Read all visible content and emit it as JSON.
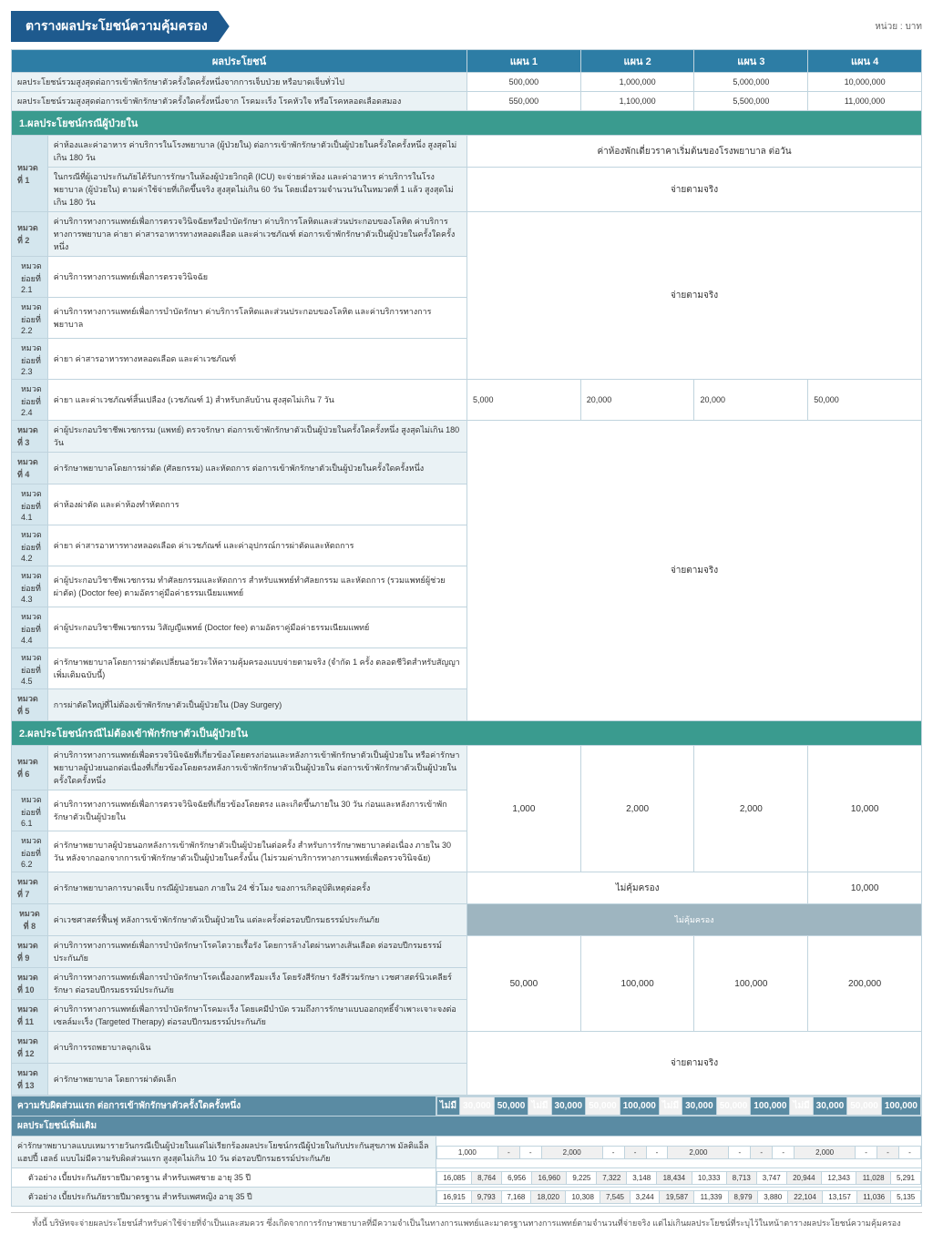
{
  "title": "ตารางผลประโยชน์ความคุ้มครอง",
  "unit": "หน่วย : บาท",
  "headers": {
    "benefit": "ผลประโยชน์",
    "plan1": "แผน 1",
    "plan2": "แผน 2",
    "plan3": "แผน 3",
    "plan4": "แผน 4"
  },
  "topRows": [
    {
      "desc": "ผลประโยชน์รวมสูงสุดต่อการเข้าพักรักษาตัวครั้งใดครั้งหนึ่งจากการเจ็บป่วย หรือบาดเจ็บทั่วไป",
      "v": [
        "500,000",
        "1,000,000",
        "5,000,000",
        "10,000,000"
      ]
    },
    {
      "desc": "ผลประโยชน์รวมสูงสุดต่อการเข้าพักรักษาตัวครั้งใดครั้งหนึ่งจาก โรคมะเร็ง โรคหัวใจ หรือโรคหลอดเลือดสมอง",
      "v": [
        "550,000",
        "1,100,000",
        "5,500,000",
        "11,000,000"
      ]
    }
  ],
  "section1": "1.ผลประโยชน์กรณีผู้ป่วยใน",
  "section2": "2.ผลประโยชน์กรณีไม่ต้องเข้าพักรักษาตัวเป็นผู้ป่วยใน",
  "cat1": {
    "label": "หมวดที่ 1",
    "r1": "ค่าห้องและค่าอาหาร ค่าบริการในโรงพยาบาล (ผู้ป่วยใน) ต่อการเข้าพักรักษาตัวเป็นผู้ป่วยในครั้งใดครั้งหนึ่ง สูงสุดไม่เกิน 180 วัน",
    "r1v": "ค่าห้องพักเดี่ยวราคาเริ่มต้นของโรงพยาบาล ต่อวัน",
    "r2": "ในกรณีที่ผู้เอาประกันภัยได้รับการรักษาในห้องผู้ป่วยวิกฤติ (ICU) จะจ่ายค่าห้อง และค่าอาหาร ค่าบริการในโรงพยาบาล (ผู้ป่วยใน) ตามค่าใช้จ่ายที่เกิดขึ้นจริง สูงสุดไม่เกิน 60 วัน โดยเมื่อรวมจำนวนวันในหมวดที่ 1 แล้ว สูงสุดไม่เกิน 180 วัน",
    "r2v": "จ่ายตามจริง"
  },
  "cat2": {
    "label": "หมวดที่ 2",
    "desc": "ค่าบริการทางการแพทย์เพื่อการตรวจวินิจฉัยหรือบำบัดรักษา ค่าบริการโลหิตและส่วนประกอบของโลหิต ค่าบริการทางการพยาบาล ค่ายา ค่าสารอาหารทางหลอดเลือด และค่าเวชภัณฑ์ ต่อการเข้าพักรักษาตัวเป็นผู้ป่วยในครั้งใดครั้งหนึ่ง"
  },
  "cat2sub": [
    {
      "l": "หมวดย่อยที่ 2.1",
      "d": "ค่าบริการทางการแพทย์เพื่อการตรวจวินิจฉัย"
    },
    {
      "l": "หมวดย่อยที่ 2.2",
      "d": "ค่าบริการทางการแพทย์เพื่อการบำบัดรักษา ค่าบริการโลหิตและส่วนประกอบของโลหิต และค่าบริการทางการพยาบาล"
    },
    {
      "l": "หมวดย่อยที่ 2.3",
      "d": "ค่ายา ค่าสารอาหารทางหลอดเลือด และค่าเวชภัณฑ์"
    },
    {
      "l": "หมวดย่อยที่ 2.4",
      "d": "ค่ายา และค่าเวชภัณฑ์สิ้นเปลือง (เวชภัณฑ์ 1) สำหรับกลับบ้าน สูงสุดไม่เกิน 7 วัน",
      "v": [
        "5,000",
        "20,000",
        "20,000",
        "50,000"
      ]
    }
  ],
  "cat2merged": "จ่ายตามจริง",
  "cat3": {
    "label": "หมวดที่ 3",
    "desc": "ค่าผู้ประกอบวิชาชีพเวชกรรม (แพทย์) ตรวจรักษา ต่อการเข้าพักรักษาตัวเป็นผู้ป่วยในครั้งใดครั้งหนึ่ง สูงสุดไม่เกิน 180 วัน"
  },
  "cat4": {
    "label": "หมวดที่ 4",
    "desc": "ค่ารักษาพยาบาลโดยการผ่าตัด (ศัลยกรรม) และหัตถการ ต่อการเข้าพักรักษาตัวเป็นผู้ป่วยในครั้งใดครั้งหนึ่ง"
  },
  "cat4sub": [
    {
      "l": "หมวดย่อยที่ 4.1",
      "d": "ค่าห้องผ่าตัด และค่าห้องทำหัตถการ"
    },
    {
      "l": "หมวดย่อยที่ 4.2",
      "d": "ค่ายา ค่าสารอาหารทางหลอดเลือด ค่าเวชภัณฑ์ และค่าอุปกรณ์การผ่าตัดและหัตถการ"
    },
    {
      "l": "หมวดย่อยที่ 4.3",
      "d": "ค่าผู้ประกอบวิชาชีพเวชกรรม ทำศัลยกรรมและหัตถการ สำหรับแพทย์ทำศัลยกรรม และหัตถการ (รวมแพทย์ผู้ช่วยผ่าตัด) (Doctor fee) ตามอัตราคู่มือค่าธรรมเนียมแพทย์"
    },
    {
      "l": "หมวดย่อยที่ 4.4",
      "d": "ค่าผู้ประกอบวิชาชีพเวชกรรม วิสัญญีแพทย์ (Doctor fee) ตามอัตราคู่มือค่าธรรมเนียมแพทย์"
    },
    {
      "l": "หมวดย่อยที่ 4.5",
      "d": "ค่ารักษาพยาบาลโดยการผ่าตัดเปลี่ยนอวัยวะให้ความคุ้มครองแบบจ่ายตามจริง (จำกัด 1 ครั้ง ตลอดชีวิตสำหรับสัญญาเพิ่มเติมฉบับนี้)"
    }
  ],
  "cat4merged": "จ่ายตามจริง",
  "cat5": {
    "label": "หมวดที่ 5",
    "desc": "การผ่าตัดใหญ่ที่ไม่ต้องเข้าพักรักษาตัวเป็นผู้ป่วยใน (Day Surgery)"
  },
  "cat6": {
    "label": "หมวดที่ 6",
    "desc": "ค่าบริการทางการแพทย์เพื่อตรวจวินิจฉัยที่เกี่ยวข้องโดยตรงก่อนและหลังการเข้าพักรักษาตัวเป็นผู้ป่วยใน หรือค่ารักษาพยาบาลผู้ป่วยนอกต่อเนื่องที่เกี่ยวข้องโดยตรงหลังการเข้าพักรักษาตัวเป็นผู้ป่วยใน ต่อการเข้าพักรักษาตัวเป็นผู้ป่วยในครั้งใดครั้งหนึ่ง"
  },
  "cat6sub": [
    {
      "l": "หมวดย่อยที่ 6.1",
      "d": "ค่าบริการทางการแพทย์เพื่อการตรวจวินิจฉัยที่เกี่ยวข้องโดยตรง และเกิดขึ้นภายใน 30 วัน ก่อนและหลังการเข้าพักรักษาตัวเป็นผู้ป่วยใน"
    },
    {
      "l": "หมวดย่อยที่ 6.2",
      "d": "ค่ารักษาพยาบาลผู้ป่วยนอกหลังการเข้าพักรักษาตัวเป็นผู้ป่วยในต่อครั้ง สำหรับการรักษาพยาบาลต่อเนื่อง ภายใน 30 วัน หลังจากออกจากการเข้าพักรักษาตัวเป็นผู้ป่วยในครั้งนั้น (ไม่รวมค่าบริการทางการแพทย์เพื่อตรวจวินิจฉัย)"
    }
  ],
  "cat6v": [
    "1,000",
    "2,000",
    "2,000",
    "10,000"
  ],
  "cat7": {
    "label": "หมวดที่ 7",
    "desc": "ค่ารักษาพยาบาลการบาดเจ็บ กรณีผู้ป่วยนอก ภายใน 24 ชั่วโมง ของการเกิดอุบัติเหตุต่อครั้ง",
    "v3": "ไม่คุ้มครอง",
    "v4": "10,000"
  },
  "cat8": {
    "label": "หมวดที่ 8",
    "desc": "ค่าเวชศาสตร์ฟื้นฟู หลังการเข้าพักรักษาตัวเป็นผู้ป่วยใน แต่ละครั้งต่อรอบปีกรมธรรม์ประกันภัย",
    "v": "ไม่คุ้มครอง"
  },
  "cat9": {
    "label": "หมวดที่ 9",
    "desc": "ค่าบริการทางการแพทย์เพื่อการบำบัดรักษาโรคไตวายเรื้อรัง โดยการล้างไตผ่านทางเส้นเลือด ต่อรอบปีกรมธรรม์ประกันภัย"
  },
  "cat10": {
    "label": "หมวดที่ 10",
    "desc": "ค่าบริการทางการแพทย์เพื่อการบำบัดรักษาโรคเนื้องอกหรือมะเร็ง โดยรังสีรักษา รังสีร่วมรักษา เวชศาสตร์นิวเคลียร์รักษา ต่อรอบปีกรมธรรม์ประกันภัย"
  },
  "cat11": {
    "label": "หมวดที่ 11",
    "desc": "ค่าบริการทางการแพทย์เพื่อการบำบัดรักษาโรคมะเร็ง โดยเคมีบำบัด รวมถึงการรักษาแบบออกฤทธิ์จำเพาะเจาะจงต่อเซลล์มะเร็ง (Targeted Therapy) ต่อรอบปีกรมธรรม์ประกันภัย"
  },
  "cat9to11v": [
    "50,000",
    "100,000",
    "100,000",
    "200,000"
  ],
  "cat12": {
    "label": "หมวดที่ 12",
    "desc": "ค่าบริการรถพยาบาลฉุกเฉิน"
  },
  "cat13": {
    "label": "หมวดที่ 13",
    "desc": "ค่ารักษาพยาบาล โดยการผ่าตัดเล็ก"
  },
  "cat12_13v": "จ่ายตามจริง",
  "deductible": {
    "label": "ความรับผิดส่วนแรก ต่อการเข้าพักรักษาตัวครั้งใดครั้งหนึ่ง",
    "cells": [
      "ไม่มี",
      "30,000",
      "50,000",
      "ไม่มี",
      "30,000",
      "50,000",
      "100,000",
      "ไม่มี",
      "30,000",
      "50,000",
      "100,000",
      "ไม่มี",
      "30,000",
      "50,000",
      "100,000"
    ]
  },
  "extra": {
    "title": "ผลประโยชน์เพิ่มเติม",
    "desc": "ค่ารักษาพยาบาลแบบเหมารายวันกรณีเป็นผู้ป่วยในแต่ไม่เรียกร้องผลประโยชน์กรณีผู้ป่วยในกับประกันสุขภาพ มัลติแอ็ล แฮปปี้ เฮลธ์ แบบไม่มีความรับผิดส่วนแรก สูงสุดไม่เกิน 10 วัน ต่อรอบปีกรมธรรม์ประกันภัย",
    "cells": [
      "1,000",
      "-",
      "-",
      "2,000",
      "-",
      "-",
      "-",
      "2,000",
      "-",
      "-",
      "-",
      "2,000",
      "-",
      "-",
      "-"
    ]
  },
  "example1": {
    "desc": "ตัวอย่าง เบี้ยประกันภัยรายปีมาตรฐาน สำหรับเพศชาย อายุ 35 ปี",
    "cells": [
      "16,085",
      "8,764",
      "6,956",
      "16,960",
      "9,225",
      "7,322",
      "3,148",
      "18,434",
      "10,333",
      "8,713",
      "3,747",
      "20,944",
      "12,343",
      "11,028",
      "5,291"
    ]
  },
  "example2": {
    "desc": "ตัวอย่าง เบี้ยประกันภัยรายปีมาตรฐาน สำหรับเพศหญิง อายุ 35 ปี",
    "cells": [
      "16,915",
      "9,793",
      "7,168",
      "18,020",
      "10,308",
      "7,545",
      "3,244",
      "19,587",
      "11,339",
      "8,979",
      "3,880",
      "22,104",
      "13,157",
      "11,036",
      "5,135"
    ]
  },
  "footer": "ทั้งนี้ บริษัทจะจ่ายผลประโยชน์สำหรับค่าใช้จ่ายที่จำเป็นและสมควร ซึ่งเกิดจากการรักษาพยาบาลที่มีความจำเป็นในทางการแพทย์และมาตรฐานทางการแพทย์ตามจำนวนที่จ่ายจริง แต่ไม่เกินผลประโยชน์ที่ระบุไว้ในหน้าตารางผลประโยชน์ความคุ้มครอง"
}
